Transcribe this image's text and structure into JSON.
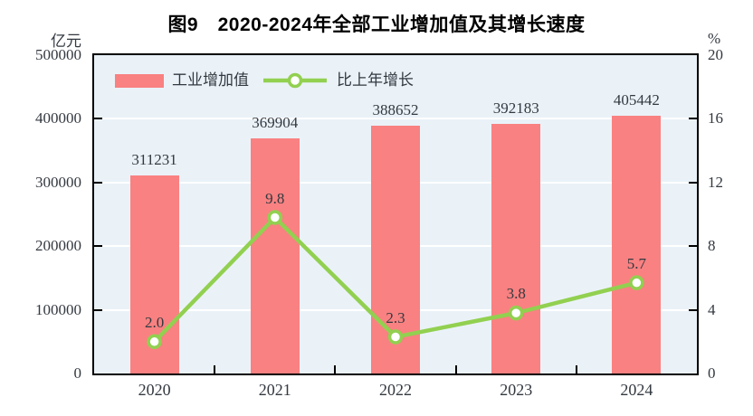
{
  "chart_data": {
    "type": "bar",
    "title": "图9　2020-2024年全部工业增加值及其增长速度",
    "categories": [
      "2020",
      "2021",
      "2022",
      "2023",
      "2024"
    ],
    "series": [
      {
        "name": "工业增加值",
        "type": "bar",
        "axis": "left",
        "values": [
          311231,
          369904,
          388652,
          392183,
          405442
        ]
      },
      {
        "name": "比上年增长",
        "type": "line",
        "axis": "right",
        "values": [
          2.0,
          9.8,
          2.3,
          3.8,
          5.7
        ]
      }
    ],
    "ylabel_left": "亿元",
    "ylabel_right": "%",
    "ylim_left": [
      0,
      500000
    ],
    "ylim_right": [
      0,
      20
    ],
    "left_ticks": [
      0,
      100000,
      200000,
      300000,
      400000,
      500000
    ],
    "right_ticks": [
      0,
      4,
      8,
      12,
      16,
      20
    ],
    "grid": true,
    "legend_position": "top-left"
  },
  "colors": {
    "bar": "#f98181",
    "line": "#92d050",
    "marker_fill": "#ffffff",
    "plot_background": "#eaf2f8",
    "gridline": "#ffffff",
    "axis": "#000000",
    "text": "#333940",
    "title": "#000000"
  }
}
